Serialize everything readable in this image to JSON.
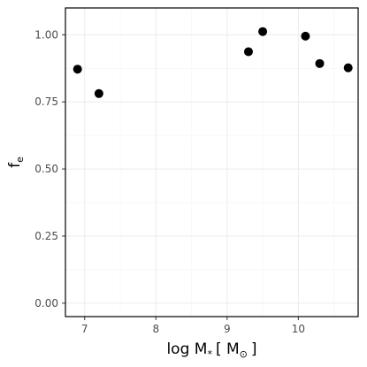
{
  "chart_data": {
    "type": "scatter",
    "x": [
      6.9,
      7.2,
      9.3,
      9.5,
      10.1,
      10.3,
      10.7
    ],
    "y": [
      0.872,
      0.781,
      0.937,
      1.012,
      0.995,
      0.893,
      0.877
    ],
    "xlim": [
      6.73,
      10.84
    ],
    "ylim": [
      -0.05,
      1.1
    ],
    "xticks": [
      7,
      8,
      9,
      10
    ],
    "yticks": [
      0.0,
      0.25,
      0.5,
      0.75,
      1.0
    ],
    "xtick_labels": [
      "7",
      "8",
      "9",
      "10"
    ],
    "ytick_labels": [
      "0.00",
      "0.25",
      "0.50",
      "0.75",
      "1.00"
    ],
    "xlabel_main": "log M",
    "xlabel_sub": "*",
    "xlabel_units": "[ M",
    "xlabel_units_sub": "⊙",
    "xlabel_close": "]",
    "ylabel_main": "f",
    "ylabel_sub": "e",
    "grid": true,
    "point_color": "#000000"
  }
}
